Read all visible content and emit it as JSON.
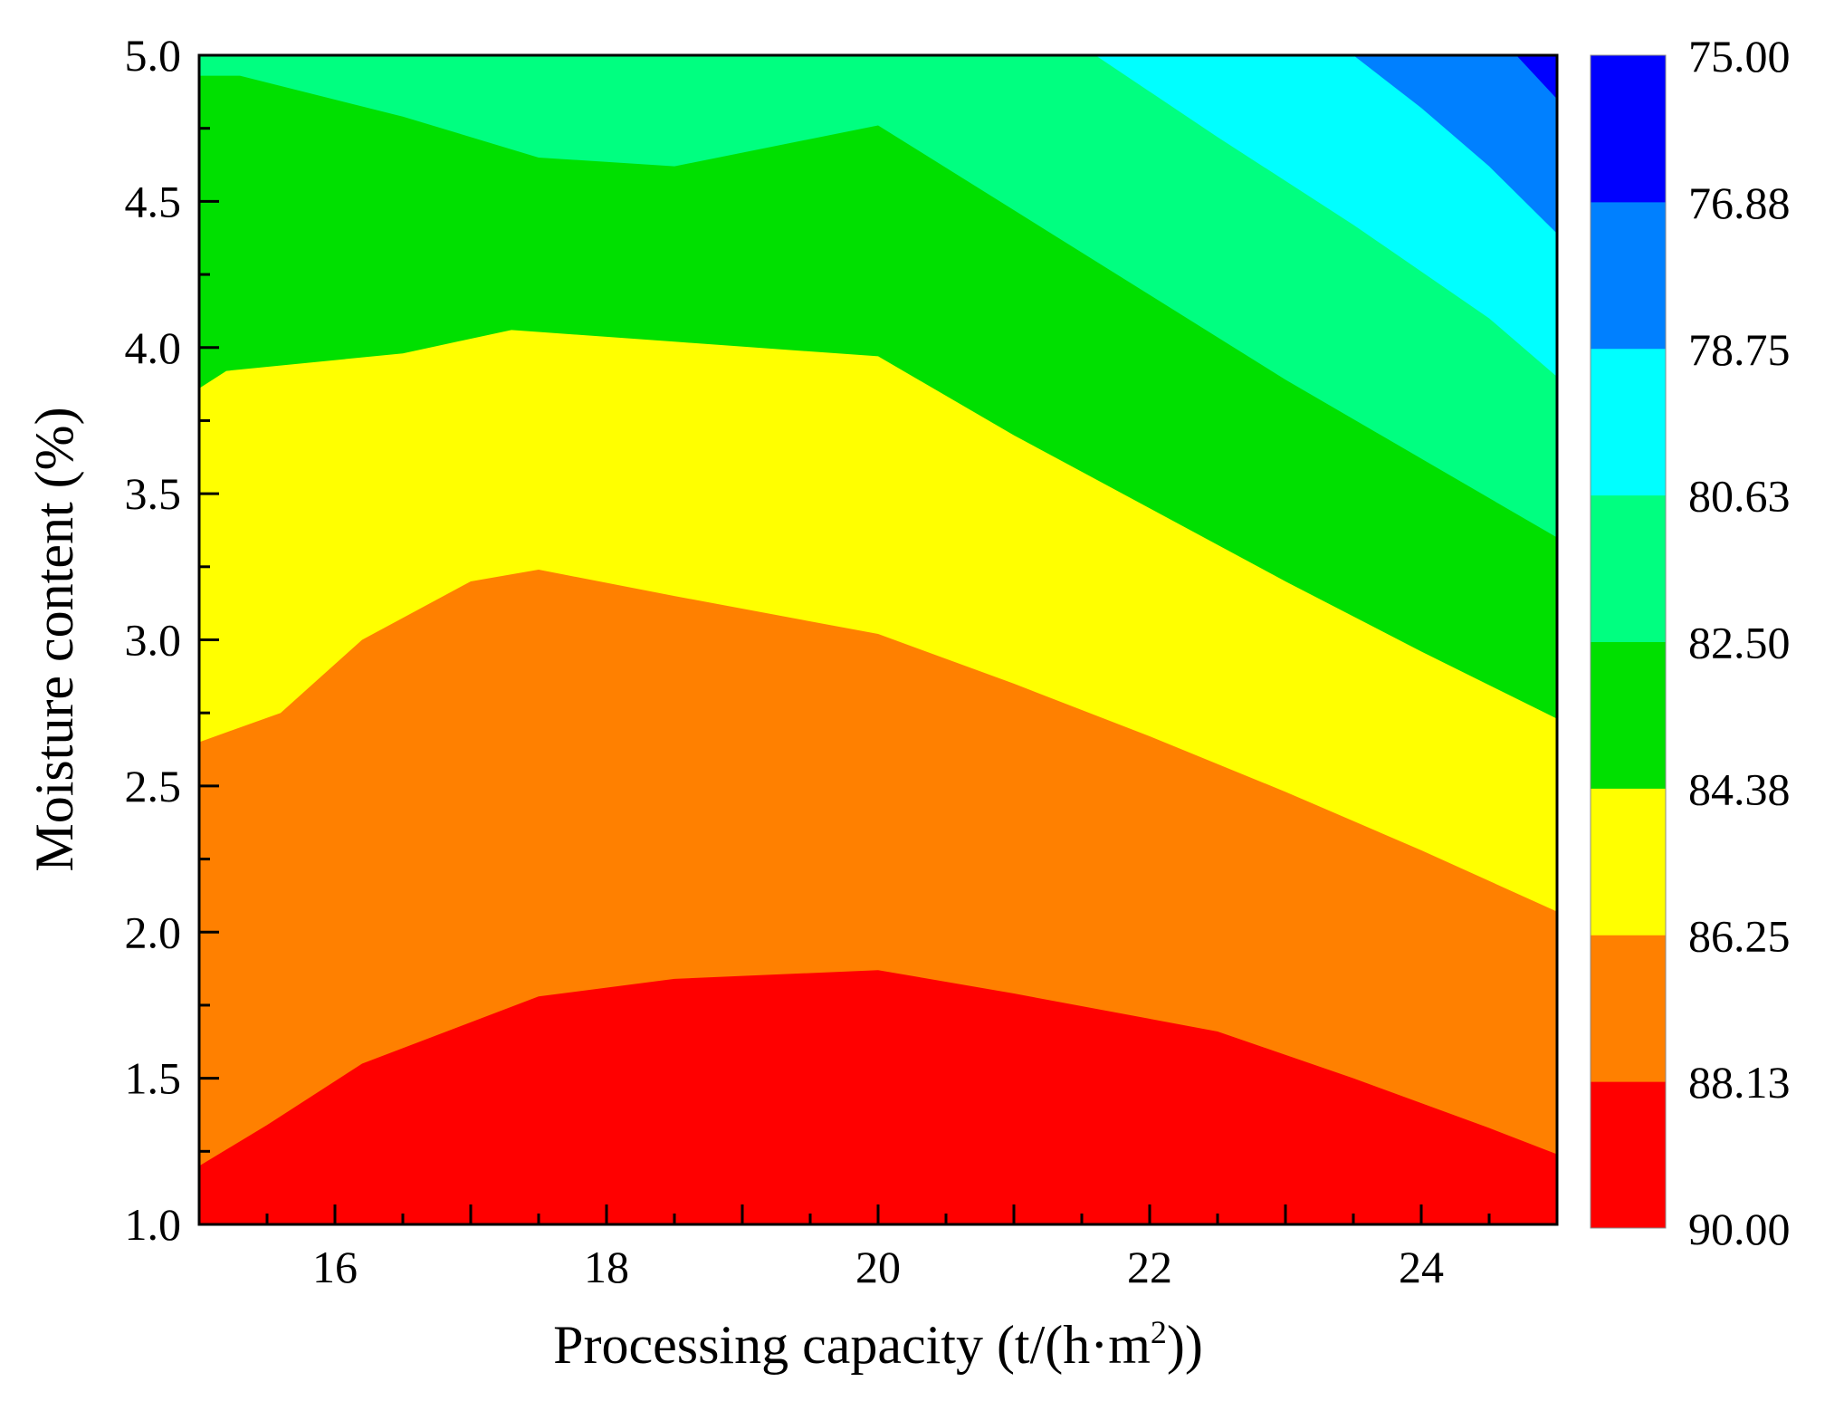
{
  "chart_data": {
    "type": "contour",
    "xlabel_main": "Processing capacity (t/(h·m",
    "xlabel_sup": "2",
    "xlabel_tail": "))",
    "ylabel": "Moisture content (%)",
    "xlim": [
      15,
      25
    ],
    "ylim": [
      1.0,
      5.0
    ],
    "x_ticks": [
      16,
      18,
      20,
      22,
      24
    ],
    "x_tick_labels": [
      "16",
      "18",
      "20",
      "22",
      "24"
    ],
    "y_ticks": [
      1.0,
      1.5,
      2.0,
      2.5,
      3.0,
      3.5,
      4.0,
      4.5,
      5.0
    ],
    "y_tick_labels": [
      "1.0",
      "1.5",
      "2.0",
      "2.5",
      "3.0",
      "3.5",
      "4.0",
      "4.5",
      "5.0"
    ],
    "colorbar": {
      "levels": [
        90.0,
        88.13,
        86.25,
        84.38,
        82.5,
        80.63,
        78.75,
        76.88,
        75.0
      ],
      "level_labels": [
        "90.00",
        "88.13",
        "86.25",
        "84.38",
        "82.50",
        "80.63",
        "78.75",
        "76.88",
        "75.00"
      ],
      "colors": [
        "#ff0000",
        "#ff8000",
        "#ffff00",
        "#00e000",
        "#00ff80",
        "#00ffff",
        "#0080ff",
        "#0000ff"
      ]
    },
    "contour_boundaries": [
      {
        "level": 88.13,
        "points": [
          [
            15,
            1.2
          ],
          [
            15.5,
            1.34
          ],
          [
            16.2,
            1.55
          ],
          [
            17.5,
            1.78
          ],
          [
            18.5,
            1.84
          ],
          [
            20,
            1.87
          ],
          [
            21,
            1.79
          ],
          [
            22.5,
            1.66
          ],
          [
            23.5,
            1.5
          ],
          [
            24.5,
            1.33
          ],
          [
            25,
            1.24
          ]
        ]
      },
      {
        "level": 86.25,
        "points": [
          [
            15,
            2.65
          ],
          [
            15.6,
            2.75
          ],
          [
            16.2,
            3.0
          ],
          [
            17,
            3.2
          ],
          [
            17.5,
            3.24
          ],
          [
            18.5,
            3.15
          ],
          [
            20,
            3.02
          ],
          [
            21,
            2.85
          ],
          [
            22,
            2.67
          ],
          [
            23,
            2.48
          ],
          [
            24,
            2.28
          ],
          [
            25,
            2.07
          ]
        ]
      },
      {
        "level": 84.38,
        "points": [
          [
            15,
            3.86
          ],
          [
            15.2,
            3.92
          ],
          [
            16.5,
            3.98
          ],
          [
            17.3,
            4.06
          ],
          [
            18.5,
            4.02
          ],
          [
            20,
            3.97
          ],
          [
            21,
            3.7
          ],
          [
            22,
            3.45
          ],
          [
            23,
            3.2
          ],
          [
            24,
            2.96
          ],
          [
            25,
            2.73
          ]
        ]
      },
      {
        "level": 82.5,
        "points": [
          [
            15,
            4.93
          ],
          [
            15.3,
            4.93
          ],
          [
            16.5,
            4.79
          ],
          [
            17.5,
            4.65
          ],
          [
            18.5,
            4.62
          ],
          [
            20,
            4.76
          ],
          [
            21,
            4.47
          ],
          [
            22,
            4.18
          ],
          [
            23,
            3.89
          ],
          [
            24,
            3.62
          ],
          [
            25,
            3.35
          ]
        ]
      },
      {
        "level": 80.63,
        "points": [
          [
            21.6,
            5.0
          ],
          [
            22.5,
            4.72
          ],
          [
            23.5,
            4.42
          ],
          [
            24.5,
            4.1
          ],
          [
            25,
            3.9
          ]
        ]
      },
      {
        "level": 78.75,
        "points": [
          [
            23.5,
            5.0
          ],
          [
            24,
            4.82
          ],
          [
            24.5,
            4.62
          ],
          [
            25,
            4.39
          ]
        ]
      },
      {
        "level": 76.88,
        "points": [
          [
            24.7,
            5.0
          ],
          [
            25,
            4.85
          ]
        ]
      }
    ]
  }
}
